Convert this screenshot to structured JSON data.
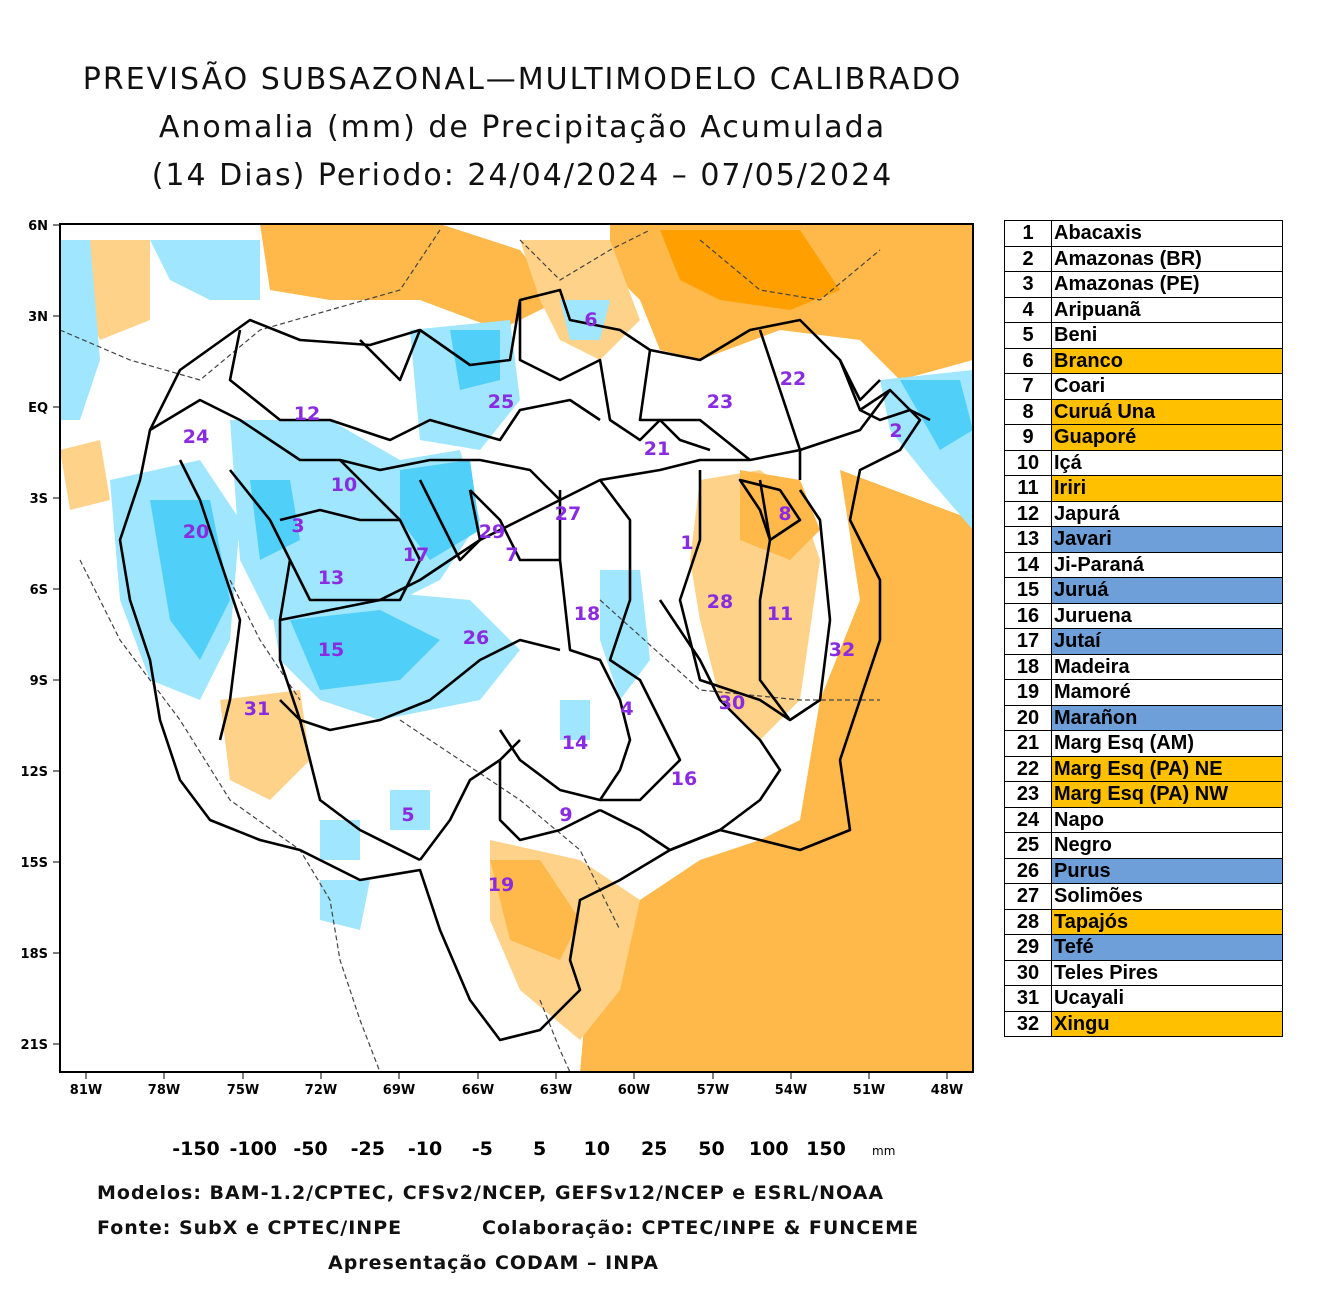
{
  "title": {
    "line1": "PREVISÃO SUBSAZONAL—MULTIMODELO CALIBRADO",
    "line2": "Anomalia (mm) de Precipitação Acumulada",
    "line3": "(14 Dias) Periodo: 24/04/2024 – 07/05/2024"
  },
  "axes": {
    "lat_labels": [
      "6N",
      "3N",
      "EQ",
      "3S",
      "6S",
      "9S",
      "12S",
      "15S",
      "18S",
      "21S"
    ],
    "lon_labels": [
      "81W",
      "78W",
      "75W",
      "72W",
      "69W",
      "66W",
      "63W",
      "60W",
      "57W",
      "54W",
      "51W",
      "48W"
    ]
  },
  "basin_labels": [
    {
      "id": "1"
    },
    {
      "id": "2"
    },
    {
      "id": "3"
    },
    {
      "id": "4"
    },
    {
      "id": "5"
    },
    {
      "id": "6"
    },
    {
      "id": "7"
    },
    {
      "id": "8"
    },
    {
      "id": "9"
    },
    {
      "id": "10"
    },
    {
      "id": "11"
    },
    {
      "id": "12"
    },
    {
      "id": "13"
    },
    {
      "id": "14"
    },
    {
      "id": "15"
    },
    {
      "id": "16"
    },
    {
      "id": "17"
    },
    {
      "id": "18"
    },
    {
      "id": "19"
    },
    {
      "id": "20"
    },
    {
      "id": "21"
    },
    {
      "id": "22"
    },
    {
      "id": "23"
    },
    {
      "id": "24"
    },
    {
      "id": "25"
    },
    {
      "id": "26"
    },
    {
      "id": "27"
    },
    {
      "id": "28"
    },
    {
      "id": "29"
    },
    {
      "id": "30"
    },
    {
      "id": "31"
    },
    {
      "id": "32"
    }
  ],
  "legend": [
    {
      "num": "1",
      "name": "Abacaxis",
      "color": "#ffffff"
    },
    {
      "num": "2",
      "name": "Amazonas (BR)",
      "color": "#ffffff"
    },
    {
      "num": "3",
      "name": "Amazonas (PE)",
      "color": "#ffffff"
    },
    {
      "num": "4",
      "name": "Aripuanã",
      "color": "#ffffff"
    },
    {
      "num": "5",
      "name": "Beni",
      "color": "#ffffff"
    },
    {
      "num": "6",
      "name": "Branco",
      "color": "#ffc000"
    },
    {
      "num": "7",
      "name": "Coari",
      "color": "#ffffff"
    },
    {
      "num": "8",
      "name": "Curuá Una",
      "color": "#ffc000"
    },
    {
      "num": "9",
      "name": "Guaporé",
      "color": "#ffc000"
    },
    {
      "num": "10",
      "name": "Içá",
      "color": "#ffffff"
    },
    {
      "num": "11",
      "name": "Iriri",
      "color": "#ffc000"
    },
    {
      "num": "12",
      "name": "Japurá",
      "color": "#ffffff"
    },
    {
      "num": "13",
      "name": "Javari",
      "color": "#6f9fd8"
    },
    {
      "num": "14",
      "name": "Ji-Paraná",
      "color": "#ffffff"
    },
    {
      "num": "15",
      "name": "Juruá",
      "color": "#6f9fd8"
    },
    {
      "num": "16",
      "name": "Juruena",
      "color": "#ffffff"
    },
    {
      "num": "17",
      "name": "Jutaí",
      "color": "#6f9fd8"
    },
    {
      "num": "18",
      "name": "Madeira",
      "color": "#ffffff"
    },
    {
      "num": "19",
      "name": "Mamoré",
      "color": "#ffffff"
    },
    {
      "num": "20",
      "name": "Marañon",
      "color": "#6f9fd8"
    },
    {
      "num": "21",
      "name": "Marg Esq (AM)",
      "color": "#ffffff"
    },
    {
      "num": "22",
      "name": "Marg Esq (PA) NE",
      "color": "#ffc000"
    },
    {
      "num": "23",
      "name": "Marg Esq (PA) NW",
      "color": "#ffc000"
    },
    {
      "num": "24",
      "name": "Napo",
      "color": "#ffffff"
    },
    {
      "num": "25",
      "name": "Negro",
      "color": "#ffffff"
    },
    {
      "num": "26",
      "name": "Purus",
      "color": "#6f9fd8"
    },
    {
      "num": "27",
      "name": "Solimões",
      "color": "#ffffff"
    },
    {
      "num": "28",
      "name": "Tapajós",
      "color": "#ffc000"
    },
    {
      "num": "29",
      "name": "Tefé",
      "color": "#6f9fd8"
    },
    {
      "num": "30",
      "name": "Teles Pires",
      "color": "#ffffff"
    },
    {
      "num": "31",
      "name": "Ucayali",
      "color": "#ffffff"
    },
    {
      "num": "32",
      "name": "Xingu",
      "color": "#ffc000"
    }
  ],
  "colorbar": {
    "labels": [
      "-150",
      "-100",
      "-50",
      "-25",
      "-10",
      "-5",
      "5",
      "10",
      "25",
      "50",
      "100",
      "150"
    ],
    "unit": "mm",
    "colors": [
      "#c8001e",
      "#f0141e",
      "#ff5050",
      "#ffa000",
      "#ffb84a",
      "#ffd28a",
      "#ffffff",
      "#a0e6ff",
      "#50d0f8",
      "#00b4f0",
      "#0090c8",
      "#006aa0",
      "#004678"
    ]
  },
  "footer": {
    "models": "Modelos: BAM-1.2/CPTEC, CFSv2/NCEP, GEFSv12/NCEP e ESRL/NOAA",
    "source": "Fonte: SubX e CPTEC/INPE",
    "collab": "Colaboração: CPTEC/INPE & FUNCEME",
    "presentation": "Apresentação CODAM – INPA"
  }
}
